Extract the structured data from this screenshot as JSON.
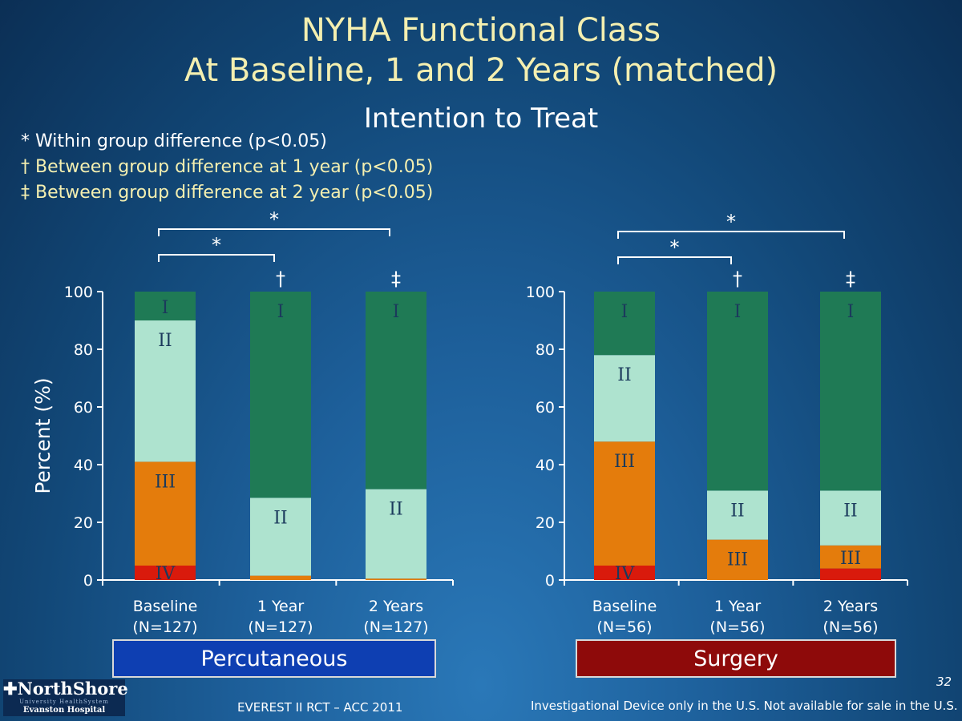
{
  "title": {
    "line1": "NYHA Functional Class",
    "line2": "At Baseline, 1 and 2 Years (matched)",
    "subtitle": "Intention to Treat"
  },
  "footnotes": [
    "* Within group difference (p<0.05)",
    "† Between group difference at 1 year (p<0.05)",
    "‡ Between group difference at 2 year (p<0.05)"
  ],
  "colors": {
    "I": "#1f7a55",
    "II": "#aee3cf",
    "III": "#e47c0c",
    "IV": "#d91a0c"
  },
  "chart_data": [
    {
      "type": "bar",
      "stacked": true,
      "group_label": "Percutaneous",
      "ylabel": "Percent (%)",
      "ylim": [
        0,
        100
      ],
      "yticks": [
        0,
        20,
        40,
        60,
        80,
        100
      ],
      "categories": [
        {
          "name": "Baseline",
          "n": "(N=127)",
          "marker": ""
        },
        {
          "name": "1 Year",
          "n": "(N=127)",
          "marker": "†"
        },
        {
          "name": "2 Years",
          "n": "(N=127)",
          "marker": "‡"
        }
      ],
      "series": [
        {
          "name": "IV",
          "values": [
            5,
            0,
            0
          ],
          "labels": [
            "IV",
            "",
            ""
          ]
        },
        {
          "name": "III",
          "values": [
            36,
            1.5,
            0.5
          ],
          "labels": [
            "III",
            "",
            ""
          ]
        },
        {
          "name": "II",
          "values": [
            49,
            27,
            31
          ],
          "labels": [
            "II",
            "II",
            "II"
          ]
        },
        {
          "name": "I",
          "values": [
            10,
            71.5,
            68.5
          ],
          "labels": [
            "I",
            "I",
            "I"
          ]
        }
      ],
      "brackets": [
        {
          "from": 0,
          "to": 1,
          "label": "*"
        },
        {
          "from": 0,
          "to": 2,
          "label": "*"
        }
      ]
    },
    {
      "type": "bar",
      "stacked": true,
      "group_label": "Surgery",
      "ylabel": "",
      "ylim": [
        0,
        100
      ],
      "yticks": [
        0,
        20,
        40,
        60,
        80,
        100
      ],
      "categories": [
        {
          "name": "Baseline",
          "n": "(N=56)",
          "marker": ""
        },
        {
          "name": "1 Year",
          "n": "(N=56)",
          "marker": "†"
        },
        {
          "name": "2 Years",
          "n": "(N=56)",
          "marker": "‡"
        }
      ],
      "series": [
        {
          "name": "IV",
          "values": [
            5,
            0,
            4
          ],
          "labels": [
            "IV",
            "",
            ""
          ]
        },
        {
          "name": "III",
          "values": [
            43,
            14,
            8
          ],
          "labels": [
            "III",
            "III",
            "III"
          ]
        },
        {
          "name": "II",
          "values": [
            30,
            17,
            19
          ],
          "labels": [
            "II",
            "II",
            "II"
          ]
        },
        {
          "name": "I",
          "values": [
            22,
            69,
            69
          ],
          "labels": [
            "I",
            "I",
            "I"
          ]
        }
      ],
      "brackets": [
        {
          "from": 0,
          "to": 1,
          "label": "*"
        },
        {
          "from": 0,
          "to": 2,
          "label": "*"
        }
      ]
    }
  ],
  "footer": {
    "logo_line1": "✚NorthShore",
    "logo_line2": "University HealthSystem",
    "logo_line3": "Evanston Hospital",
    "center": "EVEREST II RCT – ACC 2011",
    "right": "Investigational Device only in the U.S. Not available for sale in the U.S.",
    "slide_number": "32"
  }
}
